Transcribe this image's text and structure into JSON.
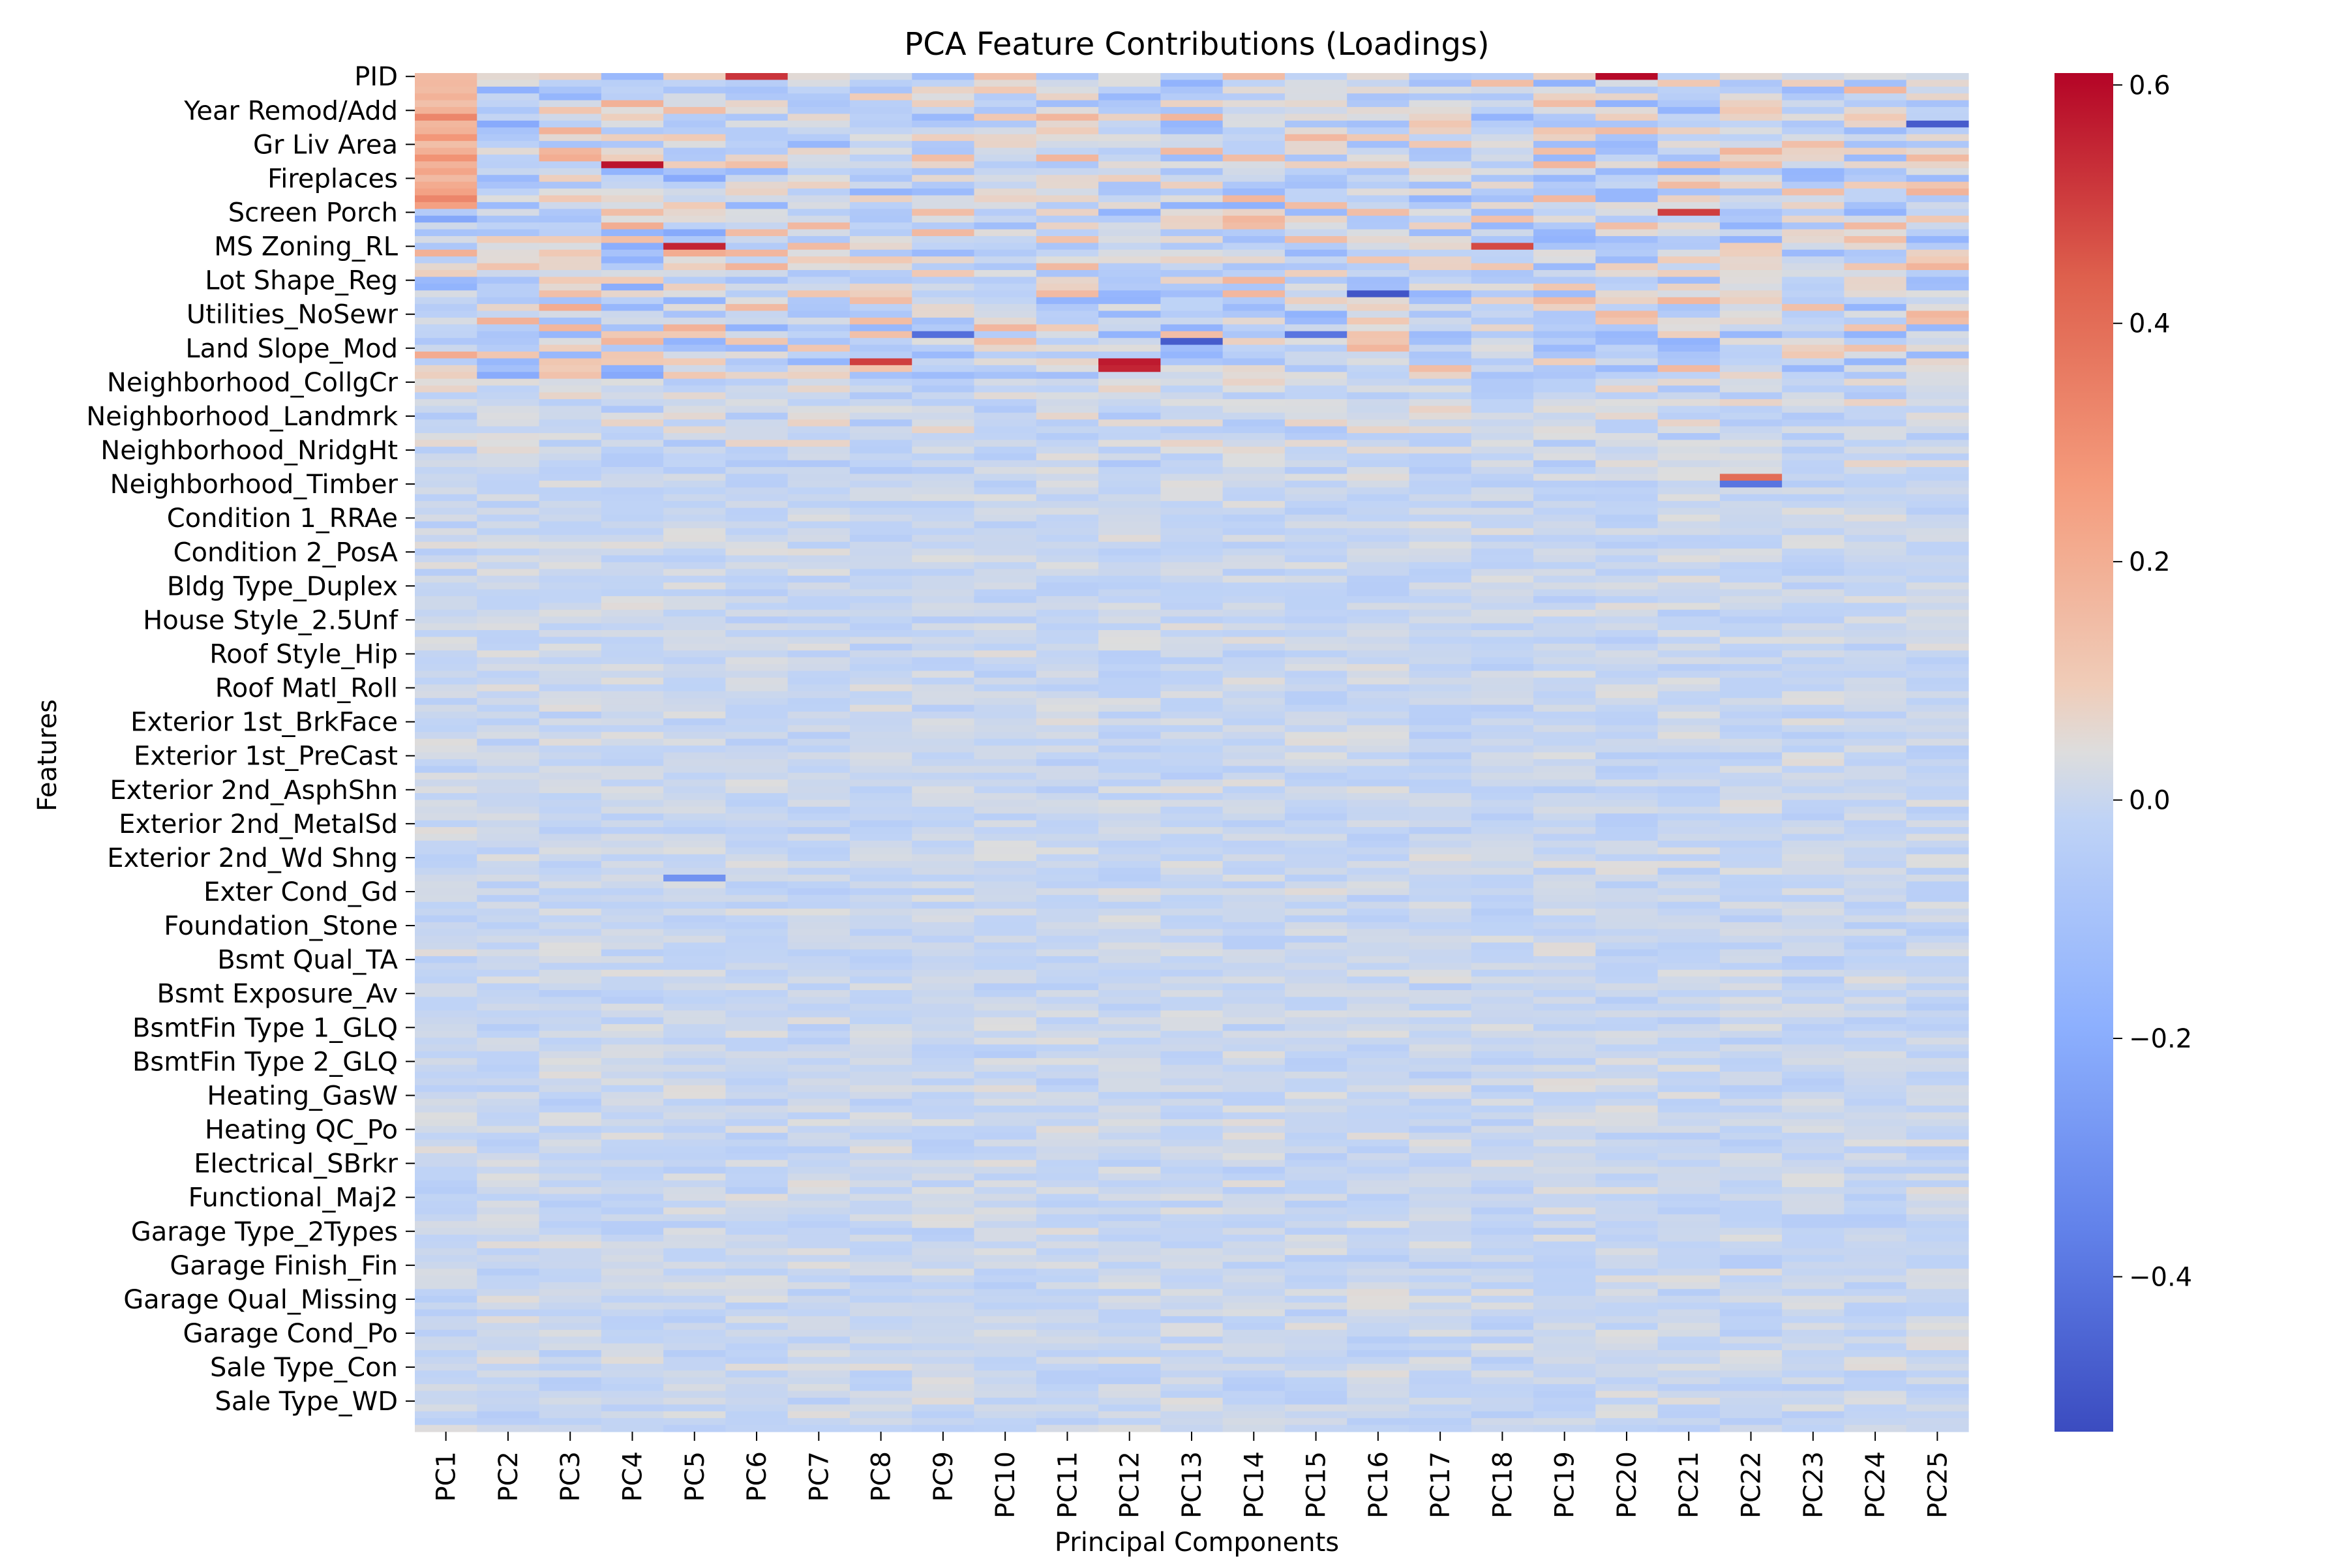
{
  "chart_data": {
    "type": "heatmap",
    "title": "PCA Feature Contributions (Loadings)",
    "xlabel": "Principal Components",
    "ylabel": "Features",
    "x_categories": [
      "PC1",
      "PC2",
      "PC3",
      "PC4",
      "PC5",
      "PC6",
      "PC7",
      "PC8",
      "PC9",
      "PC10",
      "PC11",
      "PC12",
      "PC13",
      "PC14",
      "PC15",
      "PC16",
      "PC17",
      "PC18",
      "PC19",
      "PC20",
      "PC21",
      "PC22",
      "PC23",
      "PC24",
      "PC25"
    ],
    "y_tick_labels": [
      "PID",
      "Year Remod/Add",
      "Gr Liv Area",
      "Fireplaces",
      "Screen Porch",
      "MS Zoning_RL",
      "Lot Shape_Reg",
      "Utilities_NoSewr",
      "Land Slope_Mod",
      "Neighborhood_CollgCr",
      "Neighborhood_Landmrk",
      "Neighborhood_NridgHt",
      "Neighborhood_Timber",
      "Condition 1_RRAe",
      "Condition 2_PosA",
      "Bldg Type_Duplex",
      "House Style_2.5Unf",
      "Roof Style_Hip",
      "Roof Matl_Roll",
      "Exterior 1st_BrkFace",
      "Exterior 1st_PreCast",
      "Exterior 2nd_AsphShn",
      "Exterior 2nd_MetalSd",
      "Exterior 2nd_Wd Shng",
      "Exter Cond_Gd",
      "Foundation_Stone",
      "Bsmt Qual_TA",
      "Bsmt Exposure_Av",
      "BsmtFin Type 1_GLQ",
      "BsmtFin Type 2_GLQ",
      "Heating_GasW",
      "Heating QC_Po",
      "Electrical_SBrkr",
      "Functional_Maj2",
      "Garage Type_2Types",
      "Garage Finish_Fin",
      "Garage Qual_Missing",
      "Garage Cond_Po",
      "Sale Type_Con",
      "Sale Type_WD "
    ],
    "rows_per_tick": 5,
    "total_rows": 200,
    "colormap": "coolwarm",
    "vmin": -0.53,
    "vmax": 0.61,
    "colorbar_ticks": [
      -0.4,
      -0.2,
      0.0,
      0.2,
      0.4,
      0.6
    ],
    "colorbar_tick_labels": [
      "−0.4",
      "−0.2",
      "0.0",
      "0.2",
      "0.4",
      "0.6"
    ],
    "notable_cells": [
      {
        "feature_row": 0,
        "pc": "PC20",
        "value": 0.6
      },
      {
        "feature_row": 0,
        "pc": "PC6",
        "value": 0.52
      },
      {
        "feature_row": 13,
        "pc": "PC4",
        "value": 0.58
      },
      {
        "feature_row": 25,
        "pc": "PC5",
        "value": 0.55
      },
      {
        "feature_row": 42,
        "pc": "PC12",
        "value": 0.57
      },
      {
        "feature_row": 43,
        "pc": "PC12",
        "value": 0.55
      },
      {
        "feature_row": 42,
        "pc": "PC8",
        "value": 0.5
      },
      {
        "feature_row": 32,
        "pc": "PC16",
        "value": -0.5
      },
      {
        "feature_row": 38,
        "pc": "PC9",
        "value": -0.42
      },
      {
        "feature_row": 39,
        "pc": "PC13",
        "value": -0.48
      },
      {
        "feature_row": 7,
        "pc": "PC25",
        "value": -0.48
      },
      {
        "feature_row": 25,
        "pc": "PC18",
        "value": 0.48
      },
      {
        "feature_row": 20,
        "pc": "PC21",
        "value": 0.5
      },
      {
        "feature_row": 59,
        "pc": "PC22",
        "value": 0.4
      },
      {
        "feature_row": 60,
        "pc": "PC22",
        "value": -0.4
      },
      {
        "feature_row": 38,
        "pc": "PC15",
        "value": -0.4
      },
      {
        "feature_row": 118,
        "pc": "PC5",
        "value": -0.3
      }
    ]
  },
  "colors": {
    "low": "#3b4cc0",
    "mid": "#dddddd",
    "high": "#b40426"
  }
}
